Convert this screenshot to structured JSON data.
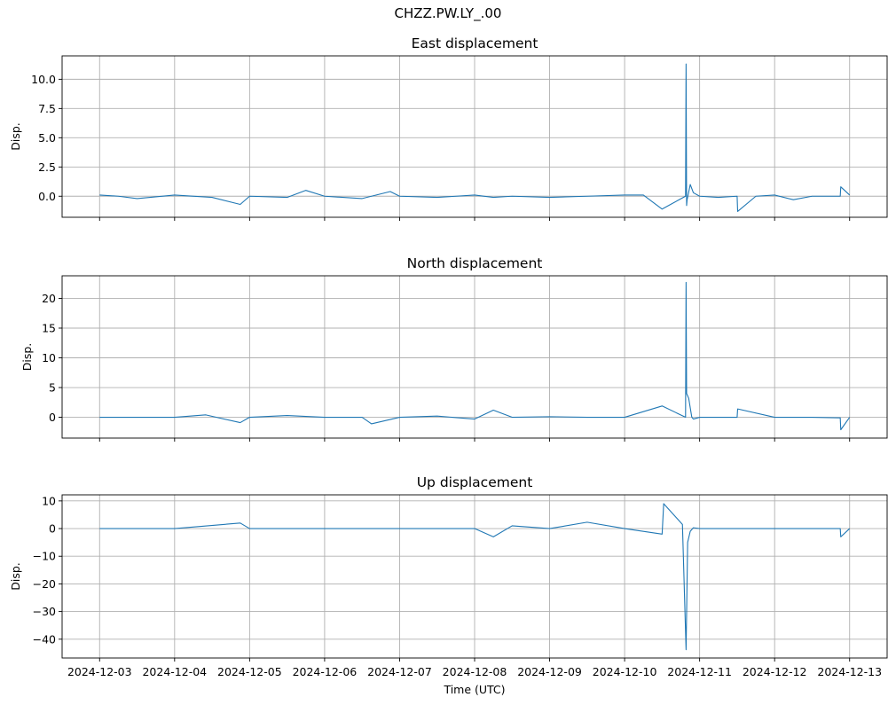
{
  "figure": {
    "suptitle": "CHZZ.PW.LY_.00",
    "xlabel": "Time (UTC)"
  },
  "chart_data": [
    {
      "type": "line",
      "title": "East displacement",
      "xlabel": "",
      "ylabel": "Disp.",
      "xlim": [
        "2024-12-02T12:00",
        "2024-12-13T12:00"
      ],
      "ylim": [
        -1.8,
        12.0
      ],
      "yticks": [
        0.0,
        2.5,
        5.0,
        7.5,
        10.0
      ],
      "ytick_labels": [
        "0.0",
        "2.5",
        "5.0",
        "7.5",
        "10.0"
      ],
      "xticks": [
        "2024-12-03",
        "2024-12-04",
        "2024-12-05",
        "2024-12-06",
        "2024-12-07",
        "2024-12-08",
        "2024-12-09",
        "2024-12-10",
        "2024-12-11",
        "2024-12-12",
        "2024-12-13"
      ],
      "grid": true,
      "color": "#1f77b4",
      "series": [
        {
          "x": [
            "2024-12-03T00:00",
            "2024-12-03T06:00",
            "2024-12-03T12:00",
            "2024-12-04T00:00",
            "2024-12-04T12:00",
            "2024-12-04T21:00",
            "2024-12-05T00:00",
            "2024-12-05T12:00",
            "2024-12-05T18:00",
            "2024-12-06T00:00",
            "2024-12-06T12:00",
            "2024-12-06T21:00",
            "2024-12-07T00:00",
            "2024-12-07T12:00",
            "2024-12-08T00:00",
            "2024-12-08T06:00",
            "2024-12-08T12:00",
            "2024-12-09T00:00",
            "2024-12-09T12:00",
            "2024-12-10T00:00",
            "2024-12-10T06:00",
            "2024-12-10T12:00",
            "2024-12-10T19:30",
            "2024-12-10T19:40",
            "2024-12-10T19:50",
            "2024-12-10T20:00",
            "2024-12-10T21:00",
            "2024-12-10T22:00",
            "2024-12-11T00:00",
            "2024-12-11T06:00",
            "2024-12-11T12:00",
            "2024-12-11T12:10",
            "2024-12-11T18:00",
            "2024-12-12T00:00",
            "2024-12-12T06:00",
            "2024-12-12T12:00",
            "2024-12-12T21:00",
            "2024-12-12T21:10",
            "2024-12-13T00:00"
          ],
          "values": [
            0.1,
            0.0,
            -0.2,
            0.1,
            -0.1,
            -0.7,
            0.0,
            -0.1,
            0.5,
            0.0,
            -0.2,
            0.4,
            0.0,
            -0.1,
            0.1,
            -0.1,
            0.0,
            -0.1,
            0.0,
            0.1,
            0.1,
            -1.1,
            0.0,
            11.3,
            -0.8,
            -0.3,
            1.0,
            0.3,
            0.0,
            -0.1,
            0.0,
            -1.3,
            0.0,
            0.1,
            -0.3,
            0.0,
            0.0,
            0.8,
            0.1
          ]
        }
      ]
    },
    {
      "type": "line",
      "title": "North displacement",
      "xlabel": "",
      "ylabel": "Disp.",
      "xlim": [
        "2024-12-02T12:00",
        "2024-12-13T12:00"
      ],
      "ylim": [
        -3.5,
        23.8
      ],
      "yticks": [
        0,
        5,
        10,
        15,
        20
      ],
      "ytick_labels": [
        "0",
        "5",
        "10",
        "15",
        "20"
      ],
      "xticks": [
        "2024-12-03",
        "2024-12-04",
        "2024-12-05",
        "2024-12-06",
        "2024-12-07",
        "2024-12-08",
        "2024-12-09",
        "2024-12-10",
        "2024-12-11",
        "2024-12-12",
        "2024-12-13"
      ],
      "grid": true,
      "color": "#1f77b4",
      "series": [
        {
          "x": [
            "2024-12-03T00:00",
            "2024-12-03T12:00",
            "2024-12-04T00:00",
            "2024-12-04T10:00",
            "2024-12-04T21:00",
            "2024-12-05T00:00",
            "2024-12-05T12:00",
            "2024-12-06T00:00",
            "2024-12-06T12:00",
            "2024-12-06T15:00",
            "2024-12-07T00:00",
            "2024-12-07T12:00",
            "2024-12-08T00:00",
            "2024-12-08T06:00",
            "2024-12-08T12:00",
            "2024-12-09T00:00",
            "2024-12-09T12:00",
            "2024-12-10T00:00",
            "2024-12-10T12:00",
            "2024-12-10T19:30",
            "2024-12-10T19:40",
            "2024-12-10T19:50",
            "2024-12-10T20:30",
            "2024-12-10T21:30",
            "2024-12-10T22:00",
            "2024-12-11T00:00",
            "2024-12-11T12:00",
            "2024-12-11T12:10",
            "2024-12-12T00:00",
            "2024-12-12T12:00",
            "2024-12-12T21:00",
            "2024-12-12T21:10",
            "2024-12-13T00:00"
          ],
          "values": [
            0.0,
            0.0,
            0.0,
            0.4,
            -0.9,
            0.0,
            0.3,
            0.0,
            0.0,
            -1.1,
            0.0,
            0.2,
            -0.3,
            1.2,
            0.0,
            0.1,
            0.0,
            0.0,
            1.9,
            0.0,
            22.7,
            4.0,
            3.2,
            0.0,
            -0.3,
            0.0,
            0.0,
            1.4,
            0.0,
            0.0,
            -0.1,
            -2.1,
            0.0
          ]
        }
      ]
    },
    {
      "type": "line",
      "title": "Up displacement",
      "xlabel": "Time (UTC)",
      "ylabel": "Disp.",
      "xlim": [
        "2024-12-02T12:00",
        "2024-12-13T12:00"
      ],
      "ylim": [
        -46.8,
        12.2
      ],
      "yticks": [
        10,
        0,
        -10,
        -20,
        -30,
        -40
      ],
      "ytick_labels": [
        "10",
        "0",
        "−10",
        "−20",
        "−30",
        "−40"
      ],
      "xticks": [
        "2024-12-03",
        "2024-12-04",
        "2024-12-05",
        "2024-12-06",
        "2024-12-07",
        "2024-12-08",
        "2024-12-09",
        "2024-12-10",
        "2024-12-11",
        "2024-12-12",
        "2024-12-13"
      ],
      "xtick_labels": [
        "2024-12-03",
        "2024-12-04",
        "2024-12-05",
        "2024-12-06",
        "2024-12-07",
        "2024-12-08",
        "2024-12-09",
        "2024-12-10",
        "2024-12-11",
        "2024-12-12",
        "2024-12-13"
      ],
      "grid": true,
      "color": "#1f77b4",
      "series": [
        {
          "x": [
            "2024-12-03T00:00",
            "2024-12-04T00:00",
            "2024-12-04T21:00",
            "2024-12-05T00:00",
            "2024-12-06T00:00",
            "2024-12-07T00:00",
            "2024-12-08T00:00",
            "2024-12-08T06:00",
            "2024-12-08T12:00",
            "2024-12-09T00:00",
            "2024-12-09T12:00",
            "2024-12-10T00:00",
            "2024-12-10T12:00",
            "2024-12-10T12:30",
            "2024-12-10T18:30",
            "2024-12-10T19:40",
            "2024-12-10T20:10",
            "2024-12-10T21:00",
            "2024-12-10T22:00",
            "2024-12-11T00:00",
            "2024-12-12T00:00",
            "2024-12-12T21:00",
            "2024-12-12T21:10",
            "2024-12-13T00:00"
          ],
          "values": [
            0.0,
            0.0,
            2.0,
            0.0,
            0.0,
            0.0,
            0.0,
            -3.0,
            1.0,
            0.0,
            2.3,
            0.0,
            -2.0,
            9.0,
            1.5,
            -43.8,
            -5.0,
            -1.0,
            0.3,
            0.0,
            0.0,
            0.0,
            -3.0,
            0.0
          ]
        }
      ]
    }
  ]
}
